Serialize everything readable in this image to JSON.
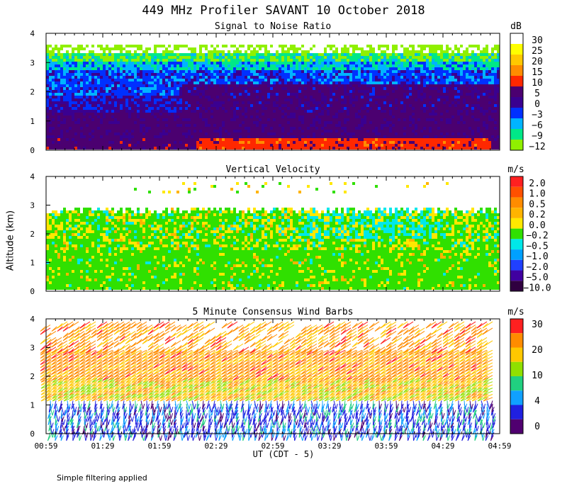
{
  "title": "449 MHz Profiler SAVANT 10 October 2018",
  "y_axis_label": "Altitude (km)",
  "x_axis_label": "UT  (CDT - 5)",
  "footnote": "Simple filtering applied",
  "chart_data": [
    {
      "type": "heatmap",
      "title": "Signal to Noise Ratio",
      "ylim": [
        0,
        4
      ],
      "yticks": [
        "0",
        "1",
        "2",
        "3",
        "4"
      ],
      "x_ticks": [
        "00:59",
        "01:29",
        "01:59",
        "02:29",
        "02:59",
        "03:29",
        "03:59",
        "04:29",
        "04:59"
      ],
      "colorbar": {
        "unit": "dB",
        "labels": [
          "30",
          "25",
          "20",
          "15",
          "10",
          "5",
          "0",
          "−3",
          "−6",
          "−9",
          "−12"
        ],
        "colors": [
          "#ffffff",
          "#ffff00",
          "#ffc800",
          "#ff8c00",
          "#ff2800",
          "#4b0070",
          "#3a0090",
          "#0030ff",
          "#00b4ff",
          "#00e888",
          "#90f000"
        ]
      },
      "layers": [
        {
          "range_km": [
            0.0,
            0.5
          ],
          "value_db": 10
        },
        {
          "range_km": [
            0.5,
            1.3
          ],
          "value_db": 5
        },
        {
          "range_km": [
            1.3,
            2.2
          ],
          "value_db": 0
        },
        {
          "range_km": [
            2.2,
            2.8
          ],
          "value_db": -3
        },
        {
          "range_km": [
            2.8,
            3.3
          ],
          "value_db": -9
        },
        {
          "range_km": [
            3.3,
            3.6
          ],
          "value_db": -12
        }
      ]
    },
    {
      "type": "heatmap",
      "title": "Vertical Velocity",
      "ylim": [
        0,
        4
      ],
      "yticks": [
        "0",
        "1",
        "2",
        "3",
        "4"
      ],
      "colorbar": {
        "unit": "m/s",
        "labels": [
          "2.0",
          "1.0",
          "0.5",
          "0.2",
          "0.0",
          "−0.2",
          "−0.5",
          "−1.0",
          "−2.0",
          "−5.0",
          "−10.0"
        ],
        "colors": [
          "#ff2020",
          "#ff5000",
          "#ff8c00",
          "#ffb400",
          "#ffe800",
          "#30e000",
          "#00e8e8",
          "#00a0ff",
          "#2040ff",
          "#4000a0",
          "#300040"
        ]
      },
      "dominant_value_ms": -0.2,
      "data_top_km": 2.9
    },
    {
      "type": "wind-barbs",
      "title": "5 Minute Consensus Wind Barbs",
      "ylim": [
        0,
        4
      ],
      "yticks": [
        "0",
        "1",
        "2",
        "3",
        "4"
      ],
      "colorbar": {
        "unit": "m/s",
        "labels": [
          "30",
          "20",
          "10",
          "4",
          "0"
        ],
        "colors": [
          "#ff2020",
          "#ff8c00",
          "#ffc800",
          "#90e000",
          "#20d080",
          "#10a0ff",
          "#2020e0",
          "#500070"
        ]
      },
      "layers": [
        {
          "range_km": [
            0.0,
            1.2
          ],
          "speed_ms": 3
        },
        {
          "range_km": [
            1.2,
            2.0
          ],
          "speed_ms": 13
        },
        {
          "range_km": [
            2.0,
            3.0
          ],
          "speed_ms": 20
        },
        {
          "range_km": [
            3.0,
            4.0
          ],
          "speed_ms": 24
        }
      ]
    }
  ]
}
